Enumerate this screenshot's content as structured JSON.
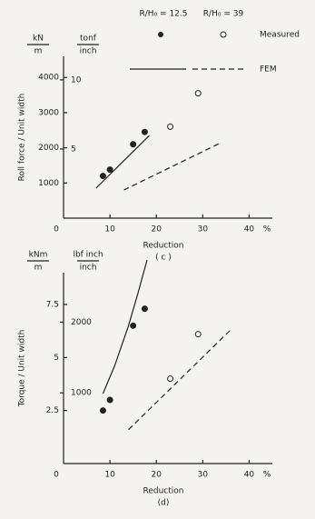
{
  "chart_data": [
    {
      "type": "scatter",
      "label": "( c )",
      "x_label": "Reduction",
      "x_unit": "%",
      "y_label": "Roll force / Unit width",
      "y_unit": [
        "kN",
        "m"
      ],
      "y2_unit": [
        "tonf",
        "inch"
      ],
      "legend": {
        "columns": [
          "R/H₀ = 12.5",
          "R/H₀ = 39"
        ],
        "rows": [
          "Measured",
          "FEM"
        ]
      },
      "xlim": [
        0,
        45
      ],
      "xticks": [
        0,
        10,
        20,
        30,
        40
      ],
      "ylim": [
        0,
        4600
      ],
      "yticks": [
        1000,
        2000,
        3000,
        4000
      ],
      "y2lim": [
        0,
        11.7
      ],
      "y2ticks": [
        5,
        10
      ],
      "series": [
        {
          "kind": "points",
          "filled": true,
          "x": [
            8.5,
            10,
            15,
            17.5
          ],
          "values": [
            1200,
            1380,
            2100,
            2450
          ]
        },
        {
          "kind": "points",
          "filled": false,
          "x": [
            23,
            29
          ],
          "values": [
            2600,
            3550
          ]
        },
        {
          "kind": "line",
          "dashed": false,
          "x": [
            7,
            18.5
          ],
          "values": [
            850,
            2350
          ]
        },
        {
          "kind": "line",
          "dashed": true,
          "x": [
            13,
            34
          ],
          "values": [
            800,
            2150
          ]
        }
      ]
    },
    {
      "type": "scatter",
      "label": "(d)",
      "x_label": "Reduction",
      "x_unit": "%",
      "y_label": "Torque / Unit width",
      "y_unit": [
        "kNm",
        "m"
      ],
      "y2_unit": [
        "lbf inch",
        "inch"
      ],
      "xlim": [
        0,
        45
      ],
      "xticks": [
        0,
        10,
        20,
        30,
        40
      ],
      "ylim": [
        0,
        9
      ],
      "yticks": [
        2.5,
        5,
        7.5
      ],
      "y2lim": [
        0,
        2700
      ],
      "y2ticks": [
        1000,
        2000
      ],
      "series": [
        {
          "kind": "points",
          "filled": true,
          "x": [
            8.5,
            10,
            15,
            17.5
          ],
          "values": [
            2.5,
            3,
            6.5,
            7.3
          ]
        },
        {
          "kind": "points",
          "filled": false,
          "x": [
            23,
            29
          ],
          "values": [
            4,
            6.1
          ]
        },
        {
          "kind": "line",
          "dashed": false,
          "x": [
            8.5,
            11,
            14,
            16,
            18
          ],
          "values": [
            3.3,
            4.6,
            6.5,
            8,
            9.6
          ]
        },
        {
          "kind": "line",
          "dashed": true,
          "x": [
            14,
            36
          ],
          "values": [
            1.6,
            6.3
          ]
        }
      ]
    }
  ]
}
